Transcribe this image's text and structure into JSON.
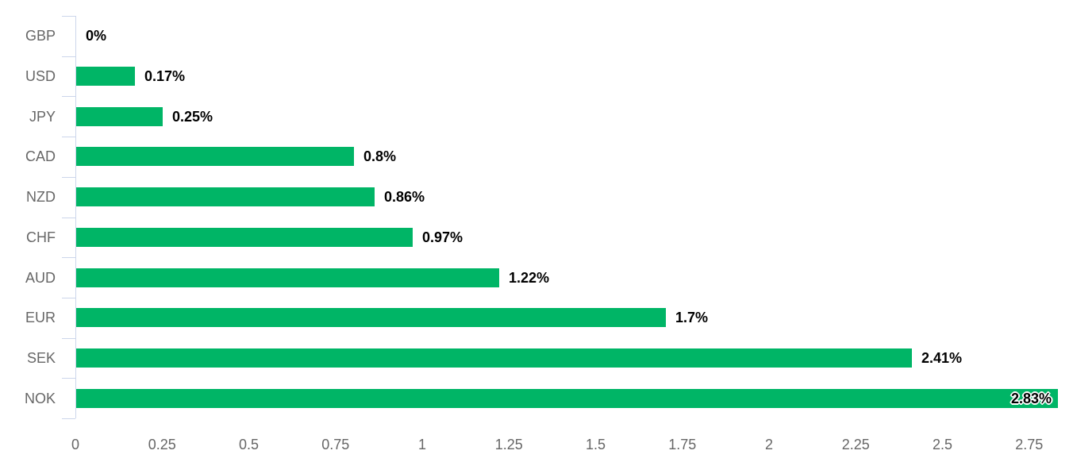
{
  "chart_data": {
    "type": "bar",
    "orientation": "horizontal",
    "title": "",
    "xlabel": "",
    "ylabel": "",
    "categories": [
      "GBP",
      "USD",
      "JPY",
      "CAD",
      "NZD",
      "CHF",
      "AUD",
      "EUR",
      "SEK",
      "NOK"
    ],
    "values": [
      0,
      0.17,
      0.25,
      0.8,
      0.86,
      0.97,
      1.22,
      1.7,
      2.41,
      2.83
    ],
    "data_labels": [
      "0%",
      "0.17%",
      "0.25%",
      "0.8%",
      "0.86%",
      "0.97%",
      "1.22%",
      "1.7%",
      "2.41%",
      "2.83%"
    ],
    "data_label_inside": [
      false,
      false,
      false,
      false,
      false,
      false,
      false,
      false,
      false,
      true
    ],
    "xlim": [
      0,
      2.83
    ],
    "x_tick_values": [
      0,
      0.25,
      0.5,
      0.75,
      1,
      1.25,
      1.5,
      1.75,
      2,
      2.25,
      2.5,
      2.75
    ],
    "x_tick_labels": [
      "0",
      "0.25",
      "0.5",
      "0.75",
      "1",
      "1.25",
      "1.5",
      "1.75",
      "2",
      "2.25",
      "2.5",
      "2.75"
    ],
    "grid": false,
    "legend": false,
    "colors": {
      "bar": "#00b566",
      "axis_line": "#ccd6eb",
      "category_label": "#666666",
      "tick_label": "#666666",
      "data_label": "#000000",
      "data_label_halo": "#ffffff",
      "background": "#ffffff"
    }
  }
}
